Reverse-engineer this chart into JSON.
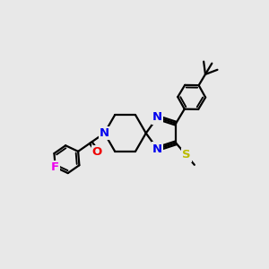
{
  "bg_color": "#e8e8e8",
  "atom_colors": {
    "C": "#000000",
    "N": "#0000ee",
    "O": "#ee0000",
    "S": "#bbbb00",
    "F": "#ee00ee"
  },
  "bond_color": "#000000",
  "bond_width": 1.6,
  "figsize": [
    3.0,
    3.0
  ],
  "dpi": 100
}
